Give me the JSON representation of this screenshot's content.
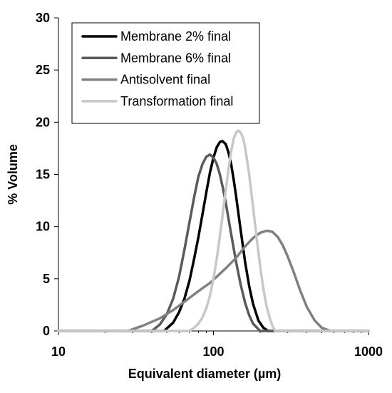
{
  "chart_data": {
    "type": "line",
    "title": "",
    "xlabel": "Equivalent diameter (µm)",
    "ylabel": "% Volume",
    "x_scale": "log",
    "xlim": [
      10,
      1000
    ],
    "ylim": [
      0,
      30
    ],
    "x_ticks": [
      10,
      100,
      1000
    ],
    "y_ticks": [
      0,
      5,
      10,
      15,
      20,
      25,
      30
    ],
    "grid": false,
    "legend_position": "top-left",
    "series": [
      {
        "name": "Membrane 2% final",
        "color": "#000000",
        "x": [
          48,
          55,
          60,
          65,
          70,
          75,
          80,
          85,
          90,
          95,
          100,
          105,
          110,
          114,
          120,
          125,
          130,
          135,
          140,
          150,
          160,
          170,
          180,
          195,
          210,
          225
        ],
        "y": [
          0.0,
          0.8,
          1.8,
          3.1,
          4.8,
          6.9,
          9.0,
          11.2,
          13.3,
          15.2,
          16.6,
          17.6,
          18.1,
          18.2,
          17.9,
          17.1,
          16.0,
          14.5,
          12.9,
          9.6,
          6.6,
          4.3,
          2.6,
          1.0,
          0.3,
          0.0
        ]
      },
      {
        "name": "Membrane 6% final",
        "color": "#5a5a5a",
        "x": [
          40,
          45,
          50,
          55,
          60,
          65,
          70,
          75,
          80,
          85,
          90,
          95,
          100,
          105,
          110,
          115,
          120,
          130,
          140,
          150,
          160,
          170,
          180,
          200
        ],
        "y": [
          0.0,
          0.6,
          1.6,
          3.1,
          5.2,
          7.8,
          10.4,
          12.8,
          14.8,
          16.0,
          16.7,
          16.9,
          16.6,
          16.0,
          15.0,
          13.7,
          12.3,
          9.3,
          6.6,
          4.4,
          2.7,
          1.5,
          0.7,
          0.0
        ]
      },
      {
        "name": "Antisolvent final",
        "color": "#808080",
        "x": [
          28,
          35,
          45,
          55,
          65,
          75,
          85,
          95,
          105,
          120,
          140,
          160,
          180,
          200,
          220,
          240,
          260,
          280,
          300,
          330,
          360,
          400,
          450,
          500,
          570
        ],
        "y": [
          0.0,
          0.5,
          1.2,
          2.0,
          2.8,
          3.5,
          4.1,
          4.6,
          5.2,
          6.0,
          7.0,
          8.1,
          8.9,
          9.4,
          9.6,
          9.5,
          9.0,
          8.2,
          7.2,
          5.6,
          4.0,
          2.3,
          1.0,
          0.3,
          0.0
        ]
      },
      {
        "name": "Transformation final",
        "color": "#c8c8c8",
        "x": [
          70,
          75,
          80,
          85,
          90,
          95,
          100,
          105,
          110,
          115,
          120,
          125,
          130,
          135,
          140,
          145,
          150,
          155,
          160,
          170,
          180,
          190,
          200,
          210,
          220,
          230,
          240,
          250
        ],
        "y": [
          0.0,
          0.3,
          0.7,
          1.3,
          2.2,
          3.4,
          5.0,
          6.9,
          9.1,
          11.3,
          13.5,
          15.5,
          17.2,
          18.4,
          19.0,
          19.2,
          19.0,
          18.5,
          17.6,
          15.0,
          11.9,
          8.9,
          6.2,
          4.0,
          2.4,
          1.3,
          0.5,
          0.0
        ]
      }
    ]
  }
}
